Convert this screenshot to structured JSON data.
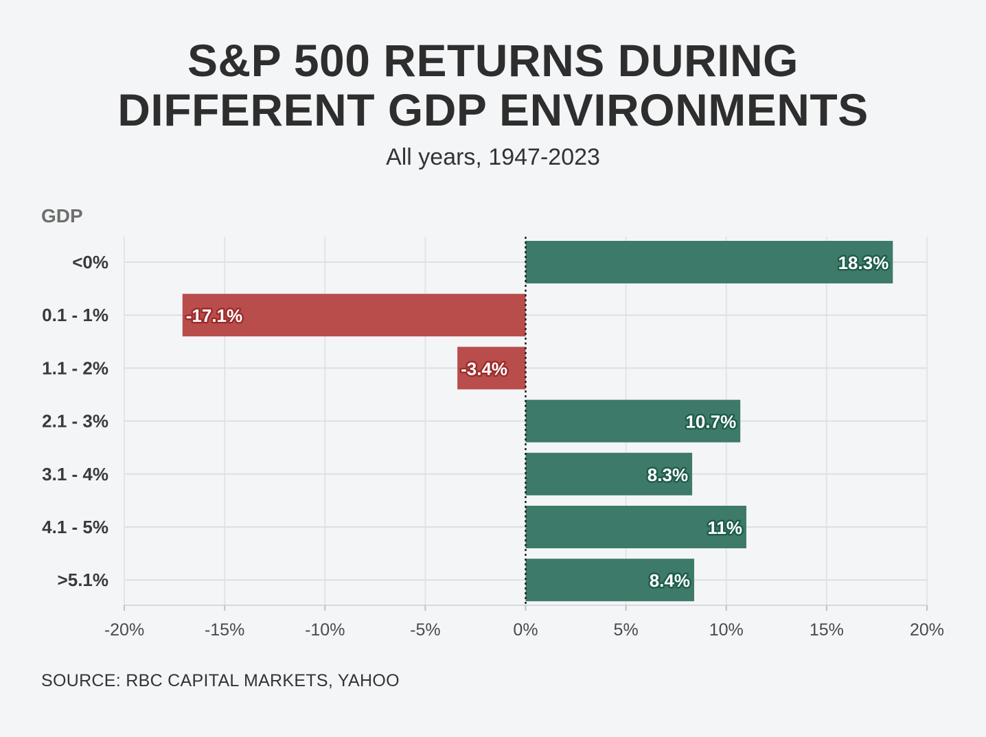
{
  "title_line1": "S&P 500 RETURNS DURING",
  "title_line2": "DIFFERENT GDP ENVIRONMENTS",
  "subtitle": "All years, 1947-2023",
  "source": "SOURCE: RBC CAPITAL MARKETS, YAHOO",
  "colors": {
    "positive": "#3d7a6a",
    "positive_outline": "#1f5c4b",
    "negative": "#b84d4b",
    "negative_outline": "#9b2c2a"
  },
  "chart_data": {
    "type": "bar",
    "orientation": "horizontal",
    "ylabel": "GDP",
    "categories": [
      "<0%",
      "0.1 - 1%",
      "1.1 - 2%",
      "2.1 - 3%",
      "3.1 - 4%",
      "4.1 - 5%",
      ">5.1%"
    ],
    "values": [
      18.3,
      -17.1,
      -3.4,
      10.7,
      8.3,
      11,
      8.4
    ],
    "value_labels": [
      "18.3%",
      "-17.1%",
      "-3.4%",
      "10.7%",
      "8.3%",
      "11%",
      "8.4%"
    ],
    "xlim": [
      -20,
      20
    ],
    "xticks": [
      -20,
      -15,
      -10,
      -5,
      0,
      5,
      10,
      15,
      20
    ],
    "xtick_labels": [
      "-20%",
      "-15%",
      "-10%",
      "-5%",
      "0%",
      "5%",
      "10%",
      "15%",
      "20%"
    ],
    "grid": true,
    "zero_line": "dotted"
  }
}
